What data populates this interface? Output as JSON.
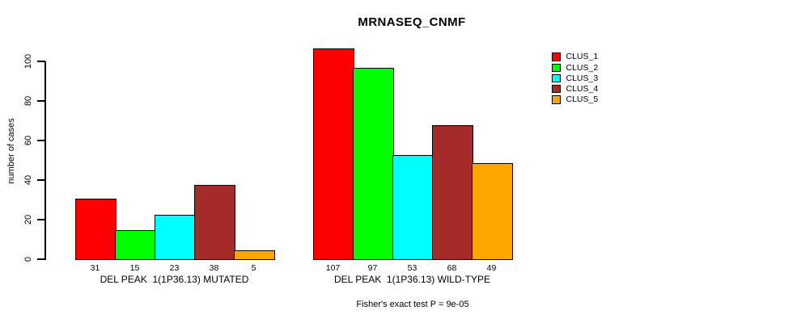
{
  "chart_data": {
    "type": "bar",
    "title": "MRNASEQ_CNMF",
    "ylabel": "number of cases",
    "ylim": [
      0,
      107
    ],
    "yticks": [
      0,
      20,
      40,
      60,
      80,
      100
    ],
    "grid": false,
    "legend_position": "right-outside",
    "bar_value_labels": true,
    "categories": [
      "DEL PEAK  1(1P36.13) MUTATED",
      "DEL PEAK  1(1P36.13) WILD-TYPE"
    ],
    "series": [
      {
        "name": "CLUS_1",
        "color": "#FF0000",
        "values": [
          31,
          107
        ]
      },
      {
        "name": "CLUS_2",
        "color": "#00FF00",
        "values": [
          15,
          97
        ]
      },
      {
        "name": "CLUS_3",
        "color": "#00FFFF",
        "values": [
          23,
          53
        ]
      },
      {
        "name": "CLUS_4",
        "color": "#A52A2A",
        "values": [
          38,
          68
        ]
      },
      {
        "name": "CLUS_5",
        "color": "#FFA500",
        "values": [
          5,
          49
        ]
      }
    ],
    "annotation": "Fisher's exact test P = 9e-05"
  }
}
